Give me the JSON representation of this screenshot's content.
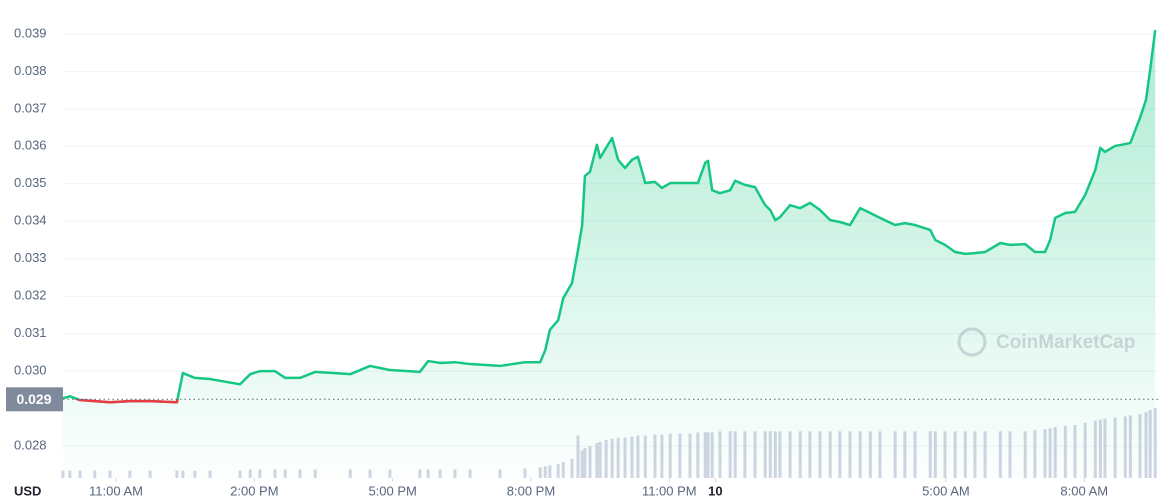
{
  "chart_data": {
    "type": "line",
    "x_unit_label": "USD",
    "watermark": "CoinMarketCap",
    "xlim": [
      9.85,
      33.6
    ],
    "xticks": [
      {
        "value": 11,
        "label": "11:00 AM"
      },
      {
        "value": 14,
        "label": "2:00 PM"
      },
      {
        "value": 17,
        "label": "5:00 PM"
      },
      {
        "value": 20,
        "label": "8:00 PM"
      },
      {
        "value": 23,
        "label": "11:00 PM"
      },
      {
        "value": 24,
        "label": "10"
      },
      {
        "value": 29,
        "label": "5:00 AM"
      },
      {
        "value": 32,
        "label": "8:00 AM"
      }
    ],
    "ylim": [
      0.02715,
      0.03977
    ],
    "yticks": [
      0.028,
      {
        "value": 0.03,
        "label": "0.030"
      },
      0.031,
      0.032,
      0.033,
      0.034,
      0.035,
      0.036,
      0.037,
      0.038,
      0.039
    ],
    "grid": true,
    "reference": {
      "value": 0.02925,
      "label": "0.029"
    },
    "below_color": "#ea3943",
    "volume_color": "#cfd5e2",
    "x": [
      9.85,
      10.0,
      10.22,
      10.54,
      10.87,
      11.3,
      11.74,
      12.32,
      12.45,
      12.71,
      13.04,
      13.69,
      13.91,
      14.12,
      14.45,
      14.67,
      14.99,
      15.32,
      16.08,
      16.51,
      16.94,
      17.59,
      17.77,
      18.03,
      18.35,
      18.68,
      19.33,
      19.87,
      20.2,
      20.31,
      20.41,
      20.59,
      20.7,
      20.89,
      21.02,
      21.11,
      21.17,
      21.28,
      21.43,
      21.5,
      21.63,
      21.76,
      21.89,
      22.04,
      22.19,
      22.32,
      22.48,
      22.69,
      22.84,
      23.02,
      23.23,
      23.45,
      23.62,
      23.78,
      23.84,
      23.93,
      24.1,
      24.32,
      24.43,
      24.64,
      24.86,
      25.08,
      25.19,
      25.3,
      25.4,
      25.62,
      25.84,
      26.05,
      26.27,
      26.49,
      26.7,
      26.92,
      27.14,
      27.36,
      27.57,
      27.9,
      28.11,
      28.33,
      28.66,
      28.77,
      28.98,
      29.2,
      29.42,
      29.63,
      29.85,
      30.18,
      30.39,
      30.72,
      30.93,
      31.15,
      31.26,
      31.37,
      31.59,
      31.8,
      32.02,
      32.24,
      32.35,
      32.45,
      32.67,
      32.89,
      33.0,
      33.21,
      33.34,
      33.43,
      33.54
    ],
    "series": [
      {
        "color": "#16c784",
        "values": [
          0.02928,
          0.02933,
          0.02923,
          0.0292,
          0.02917,
          0.0292,
          0.0292,
          0.02917,
          0.02995,
          0.02982,
          0.02979,
          0.02965,
          0.02992,
          0.03,
          0.03,
          0.02982,
          0.02982,
          0.02998,
          0.02992,
          0.03014,
          0.03003,
          0.02998,
          0.03027,
          0.03022,
          0.03024,
          0.03019,
          0.03014,
          0.03024,
          0.03024,
          0.03056,
          0.0311,
          0.03136,
          0.03195,
          0.03235,
          0.03323,
          0.0339,
          0.03521,
          0.03532,
          0.03604,
          0.03569,
          0.03596,
          0.03622,
          0.03564,
          0.03542,
          0.03564,
          0.03572,
          0.03502,
          0.03505,
          0.03489,
          0.03502,
          0.03502,
          0.03502,
          0.03502,
          0.03556,
          0.03561,
          0.03483,
          0.03475,
          0.03483,
          0.03508,
          0.03497,
          0.03491,
          0.03443,
          0.0343,
          0.03403,
          0.03411,
          0.03443,
          0.03435,
          0.03449,
          0.0343,
          0.03403,
          0.03398,
          0.0339,
          0.03435,
          0.03422,
          0.03409,
          0.0339,
          0.03395,
          0.0339,
          0.03377,
          0.0335,
          0.03337,
          0.03318,
          0.03313,
          0.03315,
          0.03318,
          0.03342,
          0.03337,
          0.03339,
          0.03318,
          0.03318,
          0.0335,
          0.03409,
          0.03422,
          0.03425,
          0.0347,
          0.03537,
          0.03596,
          0.03585,
          0.03601,
          0.03606,
          0.03609,
          0.03676,
          0.03724,
          0.03804,
          0.0391
        ]
      }
    ],
    "volume": [
      7,
      7,
      7,
      7,
      7,
      7,
      7,
      7,
      7,
      7,
      7,
      7,
      8,
      8,
      8,
      8,
      8,
      8,
      8,
      8,
      8,
      8,
      8,
      8,
      8,
      8,
      8,
      9,
      10,
      11,
      12,
      13,
      15,
      18,
      40,
      26,
      28,
      30,
      33,
      34,
      36,
      37,
      38,
      38,
      39,
      40,
      40,
      41,
      41,
      42,
      42,
      42,
      43,
      43,
      43,
      43,
      44,
      44,
      44,
      44,
      44,
      44,
      44,
      44,
      44,
      44,
      44,
      44,
      44,
      44,
      44,
      44,
      44,
      44,
      44,
      44,
      44,
      44,
      44,
      44,
      44,
      44,
      44,
      44,
      44,
      44,
      44,
      44,
      45,
      46,
      47,
      48,
      49,
      50,
      52,
      54,
      55,
      56,
      57,
      58,
      59,
      60,
      62,
      64,
      66
    ]
  }
}
